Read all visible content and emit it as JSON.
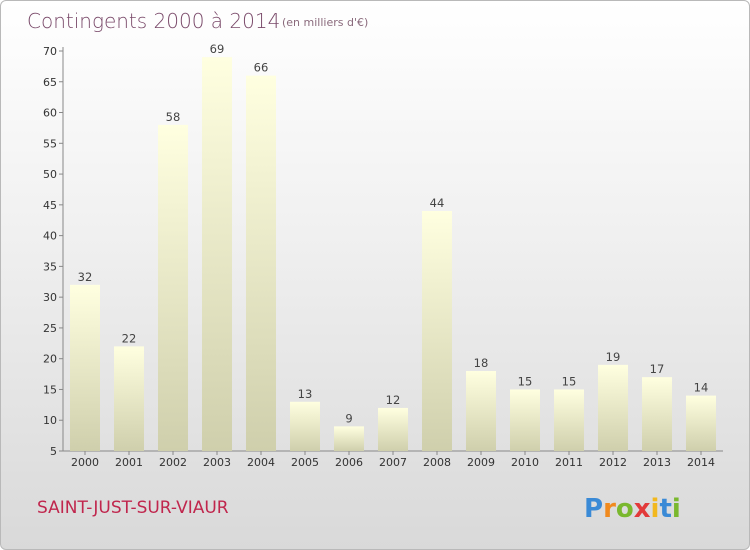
{
  "title": "Contingents 2000 à 2014",
  "unit": "(en milliers d'€)",
  "commune": "SAINT-JUST-SUR-VIAUR",
  "logo": {
    "text": "Proxiti",
    "letters": [
      "P",
      "r",
      "o",
      "x",
      "i",
      "t",
      "i"
    ],
    "colors": [
      "#3a8ad6",
      "#f08a1e",
      "#7ab82e",
      "#e23a3a",
      "#f2b81e",
      "#3a8ad6",
      "#7ab82e"
    ]
  },
  "colors": {
    "bar_top": "#ffffe0",
    "bar_bottom": "#cfcfac",
    "title": "#7a4a6a",
    "commune": "#c0264d"
  },
  "chart_data": {
    "type": "bar",
    "title": "Contingents 2000 à 2014",
    "subtitle": "(en milliers d'€)",
    "categories": [
      "2000",
      "2001",
      "2002",
      "2003",
      "2004",
      "2005",
      "2006",
      "2007",
      "2008",
      "2009",
      "2010",
      "2011",
      "2012",
      "2013",
      "2014"
    ],
    "values": [
      32,
      22,
      58,
      69,
      66,
      13,
      9,
      12,
      44,
      18,
      15,
      15,
      19,
      17,
      14
    ],
    "yticks": [
      5,
      10,
      15,
      20,
      25,
      30,
      35,
      40,
      45,
      50,
      55,
      60,
      65,
      70
    ],
    "ylim": [
      5,
      70
    ],
    "grid": false,
    "data_labels": true
  }
}
